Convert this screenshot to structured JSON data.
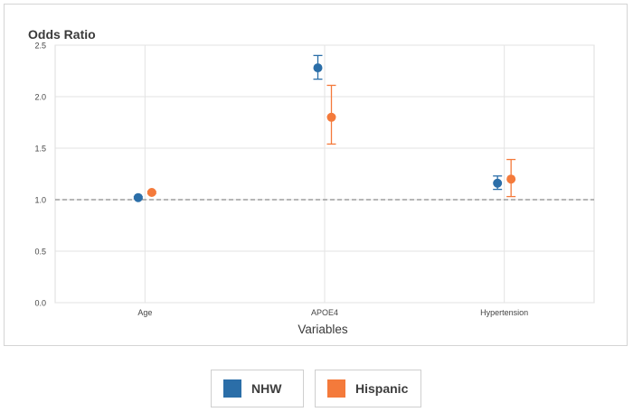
{
  "chart_data": {
    "type": "scatter",
    "title": "Odds Ratio",
    "xlabel": "Variables",
    "ylabel": "",
    "categories": [
      "Age",
      "APOE4",
      "Hypertension"
    ],
    "ylim": [
      0,
      2.5
    ],
    "yticks": [
      "0.0",
      "0.5",
      "1.0",
      "1.5",
      "2.0",
      "2.5"
    ],
    "grid": true,
    "reference_line": 1.0,
    "legend_position": "bottom",
    "series": [
      {
        "name": "NHW",
        "color": "#2b6ea8",
        "values": [
          1.02,
          2.28,
          1.16
        ],
        "ci_low": [
          1.01,
          2.17,
          1.1
        ],
        "ci_high": [
          1.03,
          2.4,
          1.23
        ]
      },
      {
        "name": "Hispanic",
        "color": "#f47a3b",
        "values": [
          1.07,
          1.8,
          1.2
        ],
        "ci_low": [
          1.06,
          1.54,
          1.03
        ],
        "ci_high": [
          1.08,
          2.11,
          1.39
        ]
      }
    ]
  }
}
